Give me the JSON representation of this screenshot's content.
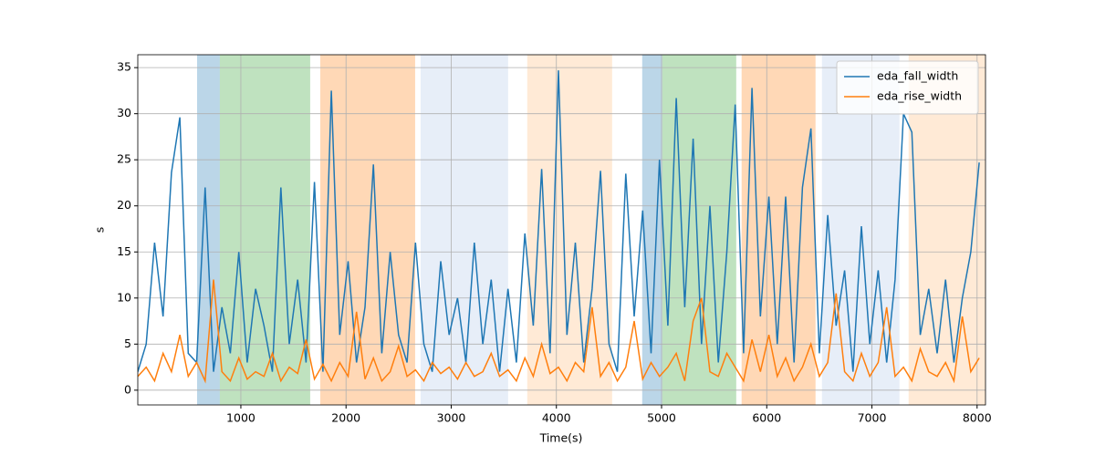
{
  "chart_data": {
    "type": "line",
    "xlabel": "Time(s)",
    "ylabel": "s",
    "xlim": [
      20,
      8080
    ],
    "ylim": [
      -1.6,
      36.4
    ],
    "xticks": [
      1000,
      2000,
      3000,
      4000,
      5000,
      6000,
      7000,
      8000
    ],
    "yticks": [
      0,
      5,
      10,
      15,
      20,
      25,
      30,
      35
    ],
    "grid": true,
    "legend": "upper right",
    "spans": [
      {
        "x": [
          584,
          800
        ],
        "color": "#1f77b4"
      },
      {
        "x": [
          800,
          1659
        ],
        "color": "#2ca02c"
      },
      {
        "x": [
          1755,
          2657
        ],
        "color": "#ff7f0e"
      },
      {
        "x": [
          2709,
          3541
        ],
        "color": "#aec7e8"
      },
      {
        "x": [
          3723,
          4530
        ],
        "color": "#ffbb78"
      },
      {
        "x": [
          4816,
          5007
        ],
        "color": "#1f77b4"
      },
      {
        "x": [
          5007,
          5710
        ],
        "color": "#2ca02c"
      },
      {
        "x": [
          5761,
          6464
        ],
        "color": "#ff7f0e"
      },
      {
        "x": [
          6525,
          7262
        ],
        "color": "#aec7e8"
      },
      {
        "x": [
          7349,
          8077
        ],
        "color": "#ffbb78"
      }
    ],
    "x": [
      20,
      100,
      180,
      260,
      340,
      420,
      500,
      580,
      660,
      740,
      820,
      900,
      980,
      1060,
      1140,
      1220,
      1300,
      1380,
      1460,
      1540,
      1620,
      1700,
      1780,
      1860,
      1940,
      2020,
      2100,
      2180,
      2260,
      2340,
      2420,
      2500,
      2580,
      2660,
      2740,
      2820,
      2900,
      2980,
      3060,
      3140,
      3220,
      3300,
      3380,
      3460,
      3540,
      3620,
      3700,
      3780,
      3860,
      3940,
      4020,
      4100,
      4180,
      4260,
      4340,
      4420,
      4500,
      4580,
      4660,
      4740,
      4820,
      4900,
      4980,
      5060,
      5140,
      5220,
      5300,
      5380,
      5460,
      5540,
      5620,
      5700,
      5780,
      5860,
      5940,
      6020,
      6100,
      6180,
      6260,
      6340,
      6420,
      6500,
      6580,
      6660,
      6740,
      6820,
      6900,
      6980,
      7060,
      7140,
      7220,
      7300,
      7380,
      7460,
      7540,
      7620,
      7700,
      7780,
      7860,
      7940,
      8020
    ],
    "series": [
      {
        "name": "eda_fall_width",
        "color": "#1f77b4",
        "values": [
          2,
          5,
          16,
          8,
          23.6,
          29.6,
          4,
          3,
          22,
          2,
          9,
          4,
          15,
          3,
          11,
          7,
          2,
          22,
          5,
          12,
          3,
          22.6,
          2,
          32.5,
          6,
          14,
          3,
          9,
          24.5,
          4,
          15,
          6,
          3,
          16,
          5,
          2,
          14,
          6,
          10,
          3,
          16,
          5,
          12,
          2,
          11,
          3,
          17,
          7,
          24,
          4,
          34.7,
          6,
          16,
          3,
          11,
          23.8,
          5,
          2,
          23.5,
          8,
          19.5,
          4,
          25,
          7,
          31.7,
          9,
          27.3,
          5,
          20,
          3,
          15,
          31,
          4,
          32.8,
          8,
          21,
          5,
          21,
          3,
          22,
          28.4,
          4,
          19,
          7,
          13,
          2,
          17.8,
          5,
          13,
          3,
          12,
          30,
          28,
          6,
          11,
          4,
          12,
          3,
          10,
          15,
          24.7
        ]
      },
      {
        "name": "eda_rise_width",
        "color": "#ff7f0e",
        "values": [
          1.5,
          2.5,
          1,
          4,
          2,
          6,
          1.5,
          3,
          1,
          12,
          2,
          1,
          3.5,
          1.2,
          2,
          1.5,
          4,
          1,
          2.5,
          1.8,
          5.5,
          1.2,
          2.8,
          1,
          3,
          1.5,
          8.5,
          1.2,
          3.5,
          1,
          2,
          4.8,
          1.5,
          2.2,
          1,
          3,
          1.8,
          2.5,
          1.2,
          3,
          1.5,
          2,
          4,
          1.5,
          2.2,
          1,
          3.5,
          1.5,
          5,
          1.8,
          2.5,
          1,
          3,
          2,
          9,
          1.5,
          3,
          1,
          2.5,
          7.5,
          1.2,
          3,
          1.5,
          2.5,
          4,
          1,
          7.5,
          10,
          2,
          1.5,
          4,
          2.5,
          1,
          5.5,
          2,
          6,
          1.5,
          3.5,
          1,
          2.5,
          5,
          1.5,
          3,
          10.5,
          2,
          1,
          4,
          1.5,
          3,
          9,
          1.5,
          2.5,
          1,
          4.5,
          2,
          1.5,
          3,
          1,
          8,
          2,
          3.5
        ]
      }
    ]
  }
}
